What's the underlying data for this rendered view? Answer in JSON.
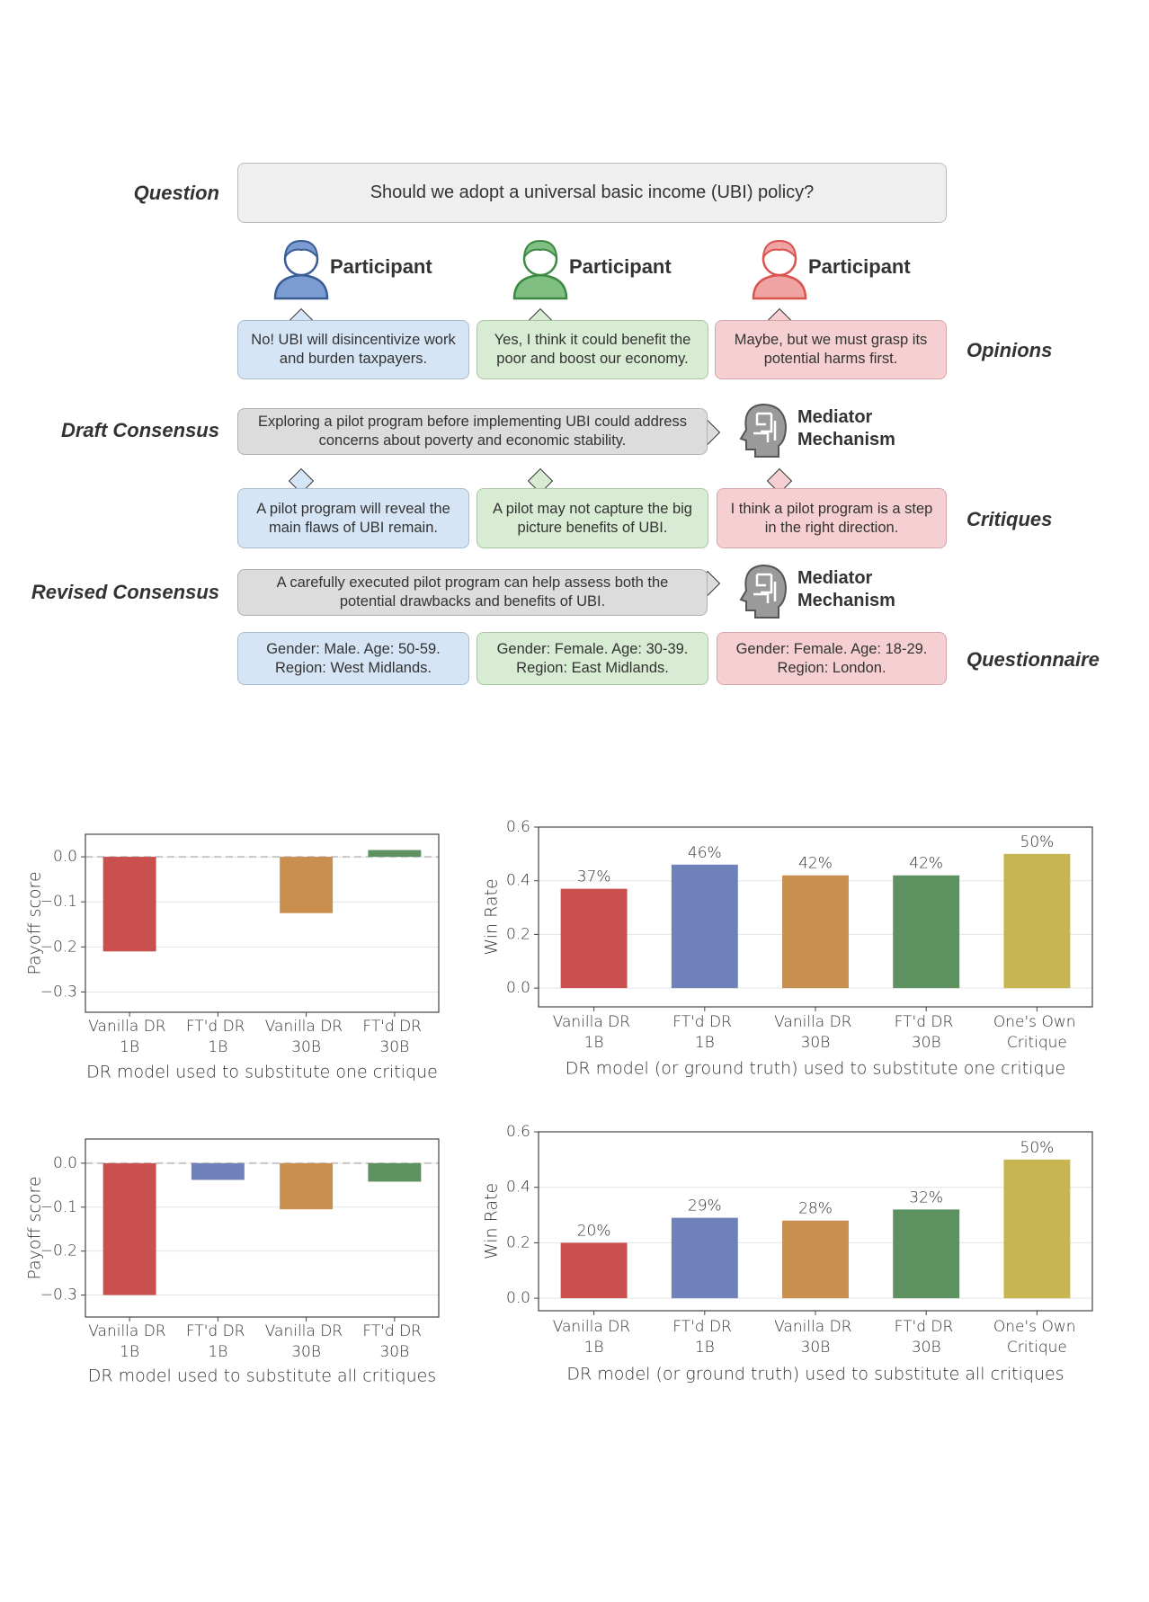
{
  "diagram": {
    "question": {
      "label": "Question",
      "text": "Should we adopt a universal basic income (UBI) policy?"
    },
    "participants": [
      {
        "label": "Participant",
        "opinion": "No! UBI will disincentivize work and burden taxpayers.",
        "critique": "A pilot program will reveal the main flaws of UBI remain.",
        "questionnaire": "Gender: Male. Age: 50-59. Region: West Midlands."
      },
      {
        "label": "Participant",
        "opinion": "Yes, I think it could benefit the poor and boost our economy.",
        "critique": "A pilot may not capture the big picture benefits of UBI.",
        "questionnaire": "Gender: Female. Age: 30-39. Region: East Midlands."
      },
      {
        "label": "Participant",
        "opinion": "Maybe, but we must grasp its potential harms first.",
        "critique": "I think a pilot program is a step in the right direction.",
        "questionnaire": "Gender: Female. Age: 18-29. Region: London."
      }
    ],
    "opinions_label": "Opinions",
    "critiques_label": "Critiques",
    "questionnaire_label": "Questionnaire",
    "draft_consensus": {
      "label": "Draft Consensus",
      "text": "Exploring a pilot program before implementing UBI could address concerns about poverty and economic stability."
    },
    "revised_consensus": {
      "label": "Revised Consensus",
      "text": "A carefully executed pilot program can help assess both the potential drawbacks and benefits of UBI."
    },
    "mediator": "Mediator Mechanism"
  },
  "chart_data": [
    {
      "type": "bar",
      "ylabel": "Payoff score",
      "xlabel": "DR model used to substitute one critique",
      "categories": [
        "Vanilla DR 1B",
        "FT'd DR 1B",
        "Vanilla DR 30B",
        "FT'd DR 30B"
      ],
      "values": [
        -0.21,
        0,
        -0.125,
        0.015
      ],
      "colors": [
        "#c9504f",
        "#6e82b9",
        "#c98f4f",
        "#5e9160"
      ],
      "ylim": [
        -0.345,
        0.05
      ],
      "yticks": [
        {
          "value": 0,
          "label": "0.0"
        },
        {
          "value": -0.1,
          "label": "−0.1"
        },
        {
          "value": -0.2,
          "label": "−0.2"
        },
        {
          "value": -0.3,
          "label": "−0.3"
        }
      ],
      "grid": true,
      "reference_line": 0
    },
    {
      "type": "bar",
      "ylabel": "Win Rate",
      "xlabel": "DR model (or ground truth) used to substitute one critique",
      "categories": [
        "Vanilla DR 1B",
        "FT'd DR 1B",
        "Vanilla DR 30B",
        "FT'd DR 30B",
        "One's Own Critique"
      ],
      "values": [
        0.37,
        0.46,
        0.42,
        0.42,
        0.5
      ],
      "value_labels": [
        "37%",
        "46%",
        "42%",
        "42%",
        "50%"
      ],
      "colors": [
        "#c9504f",
        "#6e82b9",
        "#c98f4f",
        "#5e9160",
        "#c6b550"
      ],
      "ylim": [
        -0.07,
        0.6
      ],
      "yticks": [
        {
          "value": 0,
          "label": "0.0"
        },
        0.2,
        0.4,
        0.6
      ],
      "grid": true
    },
    {
      "type": "bar",
      "ylabel": "Payoff score",
      "xlabel": "DR model used to substitute all critiques",
      "categories": [
        "Vanilla DR 1B",
        "FT'd DR 1B",
        "Vanilla DR 30B",
        "FT'd DR 30B"
      ],
      "values": [
        -0.3,
        -0.038,
        -0.105,
        -0.042
      ],
      "colors": [
        "#c9504f",
        "#6e82b9",
        "#c98f4f",
        "#5e9160"
      ],
      "ylim": [
        -0.35,
        0.055
      ],
      "yticks": [
        {
          "value": 0,
          "label": "0.0"
        },
        {
          "value": -0.1,
          "label": "−0.1"
        },
        {
          "value": -0.2,
          "label": "−0.2"
        },
        {
          "value": -0.3,
          "label": "−0.3"
        }
      ],
      "grid": true,
      "reference_line": 0
    },
    {
      "type": "bar",
      "ylabel": "Win Rate",
      "xlabel": "DR model (or ground truth) used to substitute all critiques",
      "categories": [
        "Vanilla DR 1B",
        "FT'd DR 1B",
        "Vanilla DR 30B",
        "FT'd DR 30B",
        "One's Own Critique"
      ],
      "values": [
        0.2,
        0.29,
        0.28,
        0.32,
        0.5
      ],
      "value_labels": [
        "20%",
        "29%",
        "28%",
        "32%",
        "50%"
      ],
      "colors": [
        "#c9504f",
        "#6e82b9",
        "#c98f4f",
        "#5e9160",
        "#c6b550"
      ],
      "ylim": [
        -0.045,
        0.6
      ],
      "yticks": [
        {
          "value": 0,
          "label": "0.0"
        },
        0.2,
        0.4,
        0.6
      ],
      "grid": true
    }
  ]
}
